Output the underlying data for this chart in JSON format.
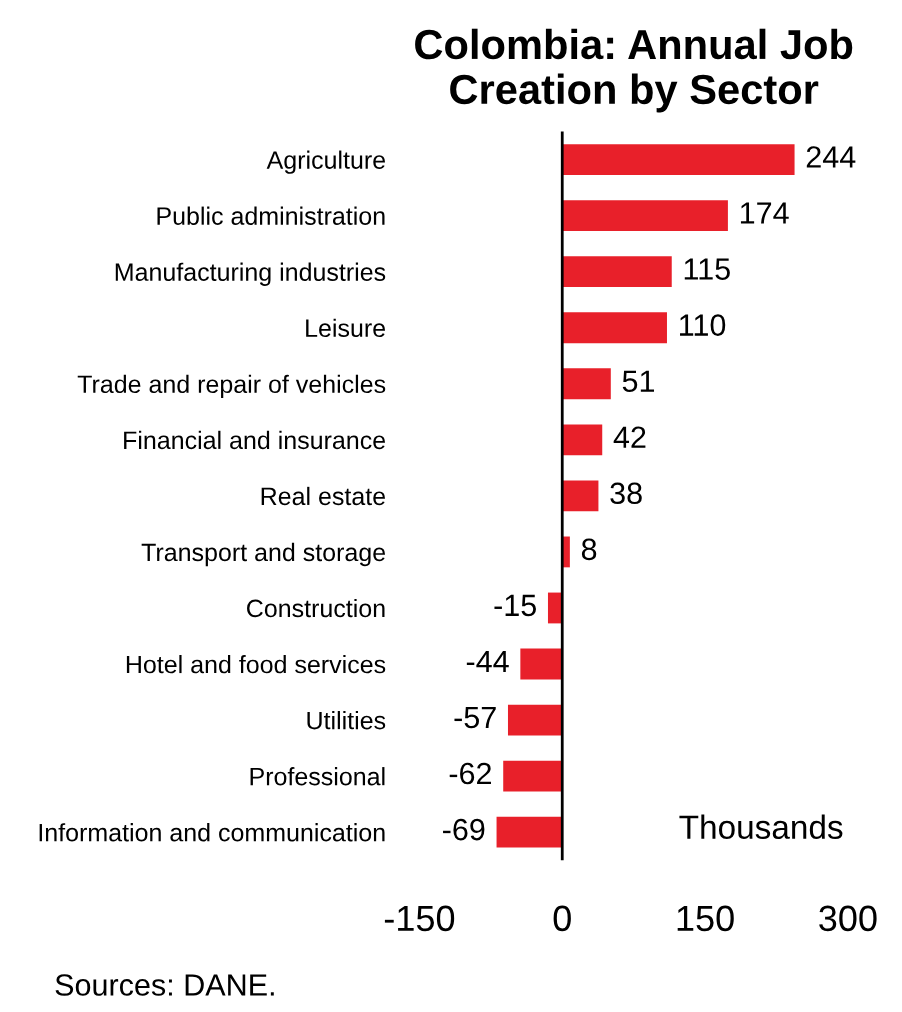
{
  "chart_data": {
    "type": "bar",
    "orientation": "horizontal",
    "title": "Colombia: Annual Job\nCreation by Sector",
    "categories": [
      "Agriculture",
      "Public administration",
      "Manufacturing industries",
      "Leisure",
      "Trade and repair of vehicles",
      "Financial and insurance",
      "Real estate",
      "Transport and storage",
      "Construction",
      "Hotel and food services",
      "Utilities",
      "Professional",
      "Information and communication"
    ],
    "values": [
      244,
      174,
      115,
      110,
      51,
      42,
      38,
      8,
      -15,
      -44,
      -57,
      -62,
      -69
    ],
    "color": "#e8202a",
    "xlim": [
      -150,
      300
    ],
    "xticks": [
      -150,
      0,
      150,
      300
    ],
    "data_labels": true,
    "grid": false,
    "legend": false,
    "ref_lines": [
      {
        "axis": "x",
        "value": 0,
        "color": "#000000"
      }
    ],
    "annotations": [
      "Thousands",
      "Sources: DANE."
    ]
  }
}
